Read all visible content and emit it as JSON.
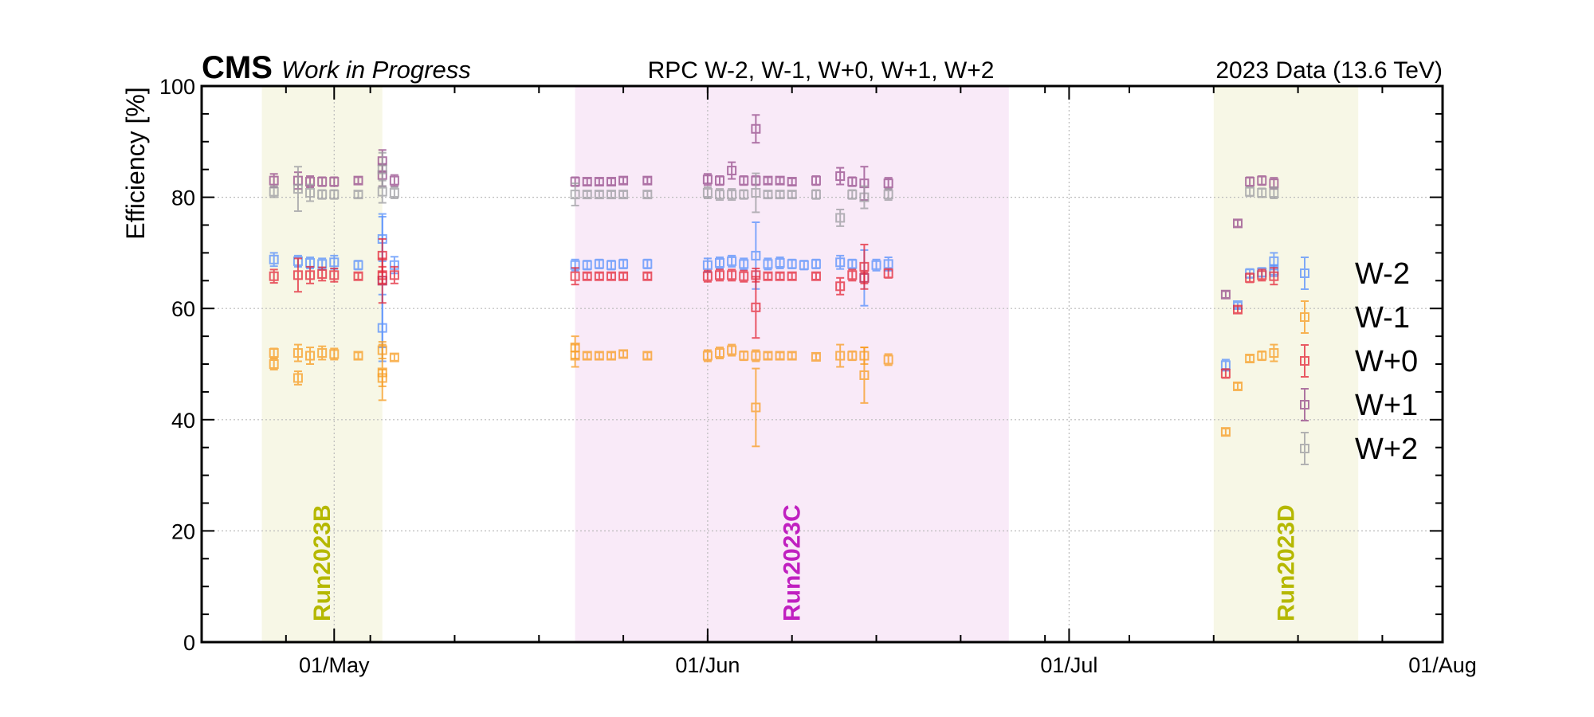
{
  "header": {
    "experiment": "CMS",
    "status": "Work in Progress",
    "title": "RPC W-2, W-1, W+0, W+1, W+2",
    "dataset": "2023 Data (13.6 TeV)"
  },
  "chart_data": {
    "type": "scatter",
    "ylabel": "Efficiency [%]",
    "xlabel": "",
    "xlim": [
      "2023-04-20",
      "2023-08-01"
    ],
    "ylim": [
      0,
      100
    ],
    "yticks": [
      0,
      20,
      40,
      60,
      80,
      100
    ],
    "xticks": [
      {
        "date": "2023-05-01",
        "label": "01/May"
      },
      {
        "date": "2023-06-01",
        "label": "01/Jun"
      },
      {
        "date": "2023-07-01",
        "label": "01/Jul"
      },
      {
        "date": "2023-08-01",
        "label": "01/Aug"
      }
    ],
    "grid": true,
    "legend_position": "right",
    "marker": "open-square-with-errorbar",
    "run_periods": [
      {
        "label": "Run2023B",
        "start": "2023-04-25",
        "end": "2023-05-05",
        "color": "#b5b800",
        "fill": "#f7f7e6"
      },
      {
        "label": "Run2023C",
        "start": "2023-05-21",
        "end": "2023-06-26",
        "color": "#c020c0",
        "fill": "#f9eaf8"
      },
      {
        "label": "Run2023D",
        "start": "2023-07-13",
        "end": "2023-07-25",
        "color": "#b5b800",
        "fill": "#f7f7e6"
      }
    ],
    "series": [
      {
        "name": "W-2",
        "color": "#5790fc",
        "points": [
          [
            "2023-04-26",
            68.8,
            1.2
          ],
          [
            "2023-04-28",
            68.5,
            1.0
          ],
          [
            "2023-04-29",
            68.2,
            1.0
          ],
          [
            "2023-04-30",
            68.0,
            1.0
          ],
          [
            "2023-05-01",
            68.3,
            1.2
          ],
          [
            "2023-05-03",
            67.8,
            0.8
          ],
          [
            "2023-05-05",
            65.0,
            12.0
          ],
          [
            "2023-05-05",
            72.5,
            4.0
          ],
          [
            "2023-05-05",
            56.5,
            6.0
          ],
          [
            "2023-05-06",
            67.8,
            1.5
          ],
          [
            "2023-05-21",
            67.8,
            1.0
          ],
          [
            "2023-05-22",
            67.8,
            0.8
          ],
          [
            "2023-05-23",
            68.0,
            0.8
          ],
          [
            "2023-05-24",
            67.8,
            0.8
          ],
          [
            "2023-05-25",
            68.0,
            0.8
          ],
          [
            "2023-05-27",
            68.0,
            0.8
          ],
          [
            "2023-06-01",
            67.8,
            1.2
          ],
          [
            "2023-06-02",
            68.2,
            1.0
          ],
          [
            "2023-06-03",
            68.5,
            1.0
          ],
          [
            "2023-06-04",
            68.0,
            1.0
          ],
          [
            "2023-06-05",
            69.5,
            6.0
          ],
          [
            "2023-06-06",
            68.0,
            1.0
          ],
          [
            "2023-06-07",
            68.2,
            1.0
          ],
          [
            "2023-06-08",
            68.0,
            0.8
          ],
          [
            "2023-06-09",
            67.8,
            0.8
          ],
          [
            "2023-06-10",
            68.0,
            0.8
          ],
          [
            "2023-06-12",
            68.3,
            1.2
          ],
          [
            "2023-06-13",
            68.0,
            0.8
          ],
          [
            "2023-06-14",
            65.5,
            5.0
          ],
          [
            "2023-06-15",
            67.8,
            1.0
          ],
          [
            "2023-06-16",
            68.0,
            1.2
          ],
          [
            "2023-07-14",
            49.8,
            1.0
          ],
          [
            "2023-07-15",
            60.6,
            0.5
          ],
          [
            "2023-07-16",
            66.3,
            0.8
          ],
          [
            "2023-07-17",
            66.5,
            0.8
          ],
          [
            "2023-07-18",
            66.8,
            1.0
          ],
          [
            "2023-07-18",
            68.5,
            1.5
          ]
        ]
      },
      {
        "name": "W-1",
        "color": "#f89c20",
        "points": [
          [
            "2023-04-26",
            50.0,
            1.0
          ],
          [
            "2023-04-26",
            52.0,
            0.8
          ],
          [
            "2023-04-28",
            47.5,
            1.2
          ],
          [
            "2023-04-28",
            52.0,
            1.5
          ],
          [
            "2023-04-29",
            51.5,
            1.5
          ],
          [
            "2023-04-30",
            52.0,
            1.2
          ],
          [
            "2023-05-01",
            51.8,
            1.0
          ],
          [
            "2023-05-03",
            51.5,
            0.6
          ],
          [
            "2023-05-05",
            52.5,
            1.5
          ],
          [
            "2023-05-05",
            48.5,
            5.0
          ],
          [
            "2023-05-05",
            47.5,
            1.5
          ],
          [
            "2023-05-06",
            51.2,
            0.6
          ],
          [
            "2023-05-21",
            51.5,
            2.0
          ],
          [
            "2023-05-21",
            53.0,
            2.0
          ],
          [
            "2023-05-22",
            51.5,
            0.6
          ],
          [
            "2023-05-23",
            51.5,
            0.6
          ],
          [
            "2023-05-24",
            51.5,
            0.6
          ],
          [
            "2023-05-25",
            51.8,
            0.6
          ],
          [
            "2023-05-27",
            51.5,
            0.6
          ],
          [
            "2023-06-01",
            51.5,
            1.0
          ],
          [
            "2023-06-02",
            52.0,
            1.0
          ],
          [
            "2023-06-03",
            52.5,
            1.0
          ],
          [
            "2023-06-04",
            51.5,
            0.8
          ],
          [
            "2023-06-05",
            42.2,
            7.0
          ],
          [
            "2023-06-05",
            51.5,
            1.0
          ],
          [
            "2023-06-06",
            51.5,
            0.6
          ],
          [
            "2023-06-07",
            51.5,
            0.6
          ],
          [
            "2023-06-08",
            51.5,
            0.6
          ],
          [
            "2023-06-10",
            51.3,
            0.6
          ],
          [
            "2023-06-12",
            51.5,
            2.0
          ],
          [
            "2023-06-13",
            51.5,
            0.8
          ],
          [
            "2023-06-14",
            48.0,
            5.0
          ],
          [
            "2023-06-14",
            51.5,
            1.5
          ],
          [
            "2023-06-16",
            50.8,
            1.0
          ],
          [
            "2023-07-14",
            37.8,
            0.6
          ],
          [
            "2023-07-15",
            46.0,
            0.6
          ],
          [
            "2023-07-16",
            51.0,
            0.6
          ],
          [
            "2023-07-17",
            51.5,
            0.8
          ],
          [
            "2023-07-18",
            52.0,
            1.5
          ]
        ]
      },
      {
        "name": "W+0",
        "color": "#e42536",
        "points": [
          [
            "2023-04-26",
            65.8,
            1.2
          ],
          [
            "2023-04-28",
            66.0,
            3.0
          ],
          [
            "2023-04-29",
            66.0,
            1.5
          ],
          [
            "2023-04-30",
            66.2,
            1.2
          ],
          [
            "2023-05-01",
            66.0,
            1.2
          ],
          [
            "2023-05-03",
            65.8,
            0.6
          ],
          [
            "2023-05-05",
            66.0,
            1.5
          ],
          [
            "2023-05-05",
            69.5,
            3.0
          ],
          [
            "2023-05-05",
            65.0,
            4.0
          ],
          [
            "2023-05-06",
            66.0,
            1.5
          ],
          [
            "2023-05-21",
            65.8,
            1.5
          ],
          [
            "2023-05-22",
            65.8,
            0.6
          ],
          [
            "2023-05-23",
            65.8,
            0.6
          ],
          [
            "2023-05-24",
            65.8,
            0.6
          ],
          [
            "2023-05-25",
            65.8,
            0.6
          ],
          [
            "2023-05-27",
            65.8,
            0.6
          ],
          [
            "2023-06-01",
            65.8,
            1.0
          ],
          [
            "2023-06-02",
            66.0,
            1.0
          ],
          [
            "2023-06-03",
            66.0,
            1.0
          ],
          [
            "2023-06-04",
            65.8,
            1.0
          ],
          [
            "2023-06-05",
            60.2,
            5.5
          ],
          [
            "2023-06-05",
            66.0,
            1.2
          ],
          [
            "2023-06-06",
            65.8,
            0.6
          ],
          [
            "2023-06-07",
            65.8,
            0.6
          ],
          [
            "2023-06-08",
            65.8,
            0.6
          ],
          [
            "2023-06-10",
            65.8,
            0.6
          ],
          [
            "2023-06-12",
            64.0,
            1.5
          ],
          [
            "2023-06-13",
            66.0,
            1.0
          ],
          [
            "2023-06-14",
            67.5,
            4.0
          ],
          [
            "2023-06-14",
            65.5,
            1.0
          ],
          [
            "2023-06-16",
            66.3,
            0.8
          ],
          [
            "2023-07-14",
            48.3,
            0.8
          ],
          [
            "2023-07-15",
            59.8,
            0.6
          ],
          [
            "2023-07-16",
            65.5,
            0.8
          ],
          [
            "2023-07-17",
            66.0,
            1.0
          ],
          [
            "2023-07-18",
            65.8,
            1.5
          ]
        ]
      },
      {
        "name": "W+1",
        "color": "#964a8b",
        "points": [
          [
            "2023-04-26",
            83.0,
            1.2
          ],
          [
            "2023-04-28",
            83.0,
            1.5
          ],
          [
            "2023-04-29",
            82.8,
            1.0
          ],
          [
            "2023-04-30",
            82.8,
            0.8
          ],
          [
            "2023-05-01",
            82.8,
            0.8
          ],
          [
            "2023-05-03",
            83.0,
            0.6
          ],
          [
            "2023-05-05",
            86.5,
            2.0
          ],
          [
            "2023-05-05",
            84.0,
            2.0
          ],
          [
            "2023-05-06",
            83.0,
            1.0
          ],
          [
            "2023-05-21",
            82.8,
            0.8
          ],
          [
            "2023-05-22",
            82.8,
            0.6
          ],
          [
            "2023-05-23",
            82.8,
            0.6
          ],
          [
            "2023-05-24",
            82.8,
            0.6
          ],
          [
            "2023-05-25",
            83.0,
            0.6
          ],
          [
            "2023-05-27",
            83.0,
            0.6
          ],
          [
            "2023-06-01",
            83.2,
            1.0
          ],
          [
            "2023-06-02",
            83.0,
            0.8
          ],
          [
            "2023-06-03",
            84.8,
            1.5
          ],
          [
            "2023-06-04",
            83.0,
            0.8
          ],
          [
            "2023-06-05",
            92.3,
            2.5
          ],
          [
            "2023-06-05",
            83.0,
            0.8
          ],
          [
            "2023-06-06",
            83.0,
            0.6
          ],
          [
            "2023-06-07",
            83.0,
            0.6
          ],
          [
            "2023-06-08",
            82.8,
            0.6
          ],
          [
            "2023-06-10",
            83.0,
            0.8
          ],
          [
            "2023-06-12",
            83.8,
            1.5
          ],
          [
            "2023-06-13",
            82.8,
            0.8
          ],
          [
            "2023-06-14",
            82.5,
            3.0
          ],
          [
            "2023-06-16",
            82.5,
            1.0
          ],
          [
            "2023-07-14",
            62.5,
            0.6
          ],
          [
            "2023-07-15",
            75.3,
            0.6
          ],
          [
            "2023-07-16",
            82.8,
            0.8
          ],
          [
            "2023-07-17",
            83.0,
            0.8
          ],
          [
            "2023-07-18",
            82.5,
            1.0
          ]
        ]
      },
      {
        "name": "W+2",
        "color": "#9c9ca1",
        "points": [
          [
            "2023-04-26",
            81.0,
            1.0
          ],
          [
            "2023-04-28",
            81.5,
            4.0
          ],
          [
            "2023-04-29",
            80.8,
            1.5
          ],
          [
            "2023-04-30",
            80.5,
            0.8
          ],
          [
            "2023-05-01",
            80.5,
            0.8
          ],
          [
            "2023-05-03",
            80.5,
            0.6
          ],
          [
            "2023-05-05",
            81.0,
            2.0
          ],
          [
            "2023-05-05",
            85.0,
            3.0
          ],
          [
            "2023-05-06",
            80.8,
            1.0
          ],
          [
            "2023-05-21",
            80.5,
            2.0
          ],
          [
            "2023-05-22",
            80.5,
            0.6
          ],
          [
            "2023-05-23",
            80.5,
            0.6
          ],
          [
            "2023-05-24",
            80.5,
            0.6
          ],
          [
            "2023-05-25",
            80.5,
            0.6
          ],
          [
            "2023-05-27",
            80.5,
            0.6
          ],
          [
            "2023-06-01",
            80.8,
            1.0
          ],
          [
            "2023-06-02",
            80.5,
            1.0
          ],
          [
            "2023-06-03",
            80.5,
            1.0
          ],
          [
            "2023-06-04",
            80.5,
            0.8
          ],
          [
            "2023-06-05",
            80.8,
            3.5
          ],
          [
            "2023-06-06",
            80.5,
            0.6
          ],
          [
            "2023-06-07",
            80.5,
            0.6
          ],
          [
            "2023-06-08",
            80.5,
            0.6
          ],
          [
            "2023-06-10",
            80.5,
            0.8
          ],
          [
            "2023-06-12",
            76.3,
            1.5
          ],
          [
            "2023-06-13",
            80.5,
            0.8
          ],
          [
            "2023-06-14",
            80.0,
            2.0
          ],
          [
            "2023-06-16",
            80.5,
            1.0
          ],
          [
            "2023-07-16",
            81.0,
            0.8
          ],
          [
            "2023-07-17",
            80.8,
            0.8
          ],
          [
            "2023-07-18",
            80.8,
            1.0
          ]
        ]
      }
    ]
  }
}
